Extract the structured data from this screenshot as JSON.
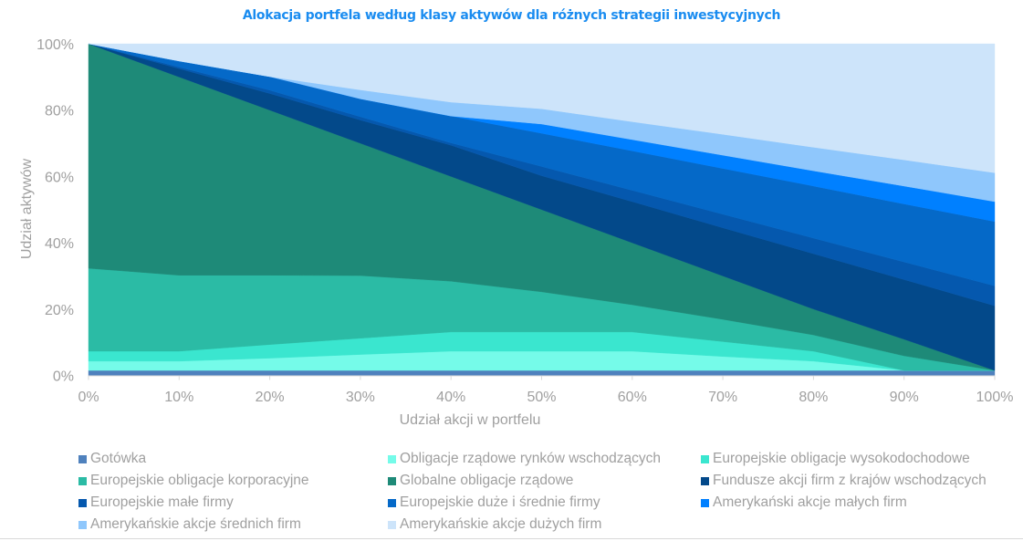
{
  "chart_data": {
    "type": "area",
    "stacked": true,
    "title": "Alokacja portfela według klasy aktywów dla różnych strategii inwestycyjnych",
    "xlabel": "Udział akcji w portfelu",
    "ylabel": "Udział aktywów",
    "x": [
      0,
      10,
      20,
      30,
      40,
      50,
      60,
      70,
      80,
      90,
      100
    ],
    "x_tick_labels": [
      "0%",
      "10%",
      "20%",
      "30%",
      "40%",
      "50%",
      "60%",
      "70%",
      "80%",
      "90%",
      "100%"
    ],
    "y_tick_values": [
      0,
      20,
      40,
      60,
      80,
      100
    ],
    "y_tick_labels": [
      "0%",
      "20%",
      "40%",
      "60%",
      "80%",
      "100%"
    ],
    "ylim": [
      0,
      100
    ],
    "legend_position": "bottom",
    "series": [
      {
        "name": "Gotówka",
        "color": "#4f81bd",
        "values": [
          1.5,
          1.5,
          1.5,
          1.5,
          1.5,
          1.5,
          1.5,
          1.5,
          1.5,
          1.5,
          1.5
        ]
      },
      {
        "name": "Obligacje rządowe rynków wschodzących",
        "color": "#75fbe9",
        "values": [
          2.8,
          2.8,
          3.7,
          4.8,
          5.8,
          5.8,
          5.8,
          4.2,
          2.8,
          0,
          0
        ]
      },
      {
        "name": "Europejskie obligacje wysokodochodowe",
        "color": "#3ae6cf",
        "values": [
          3,
          3,
          4.1,
          4.9,
          5.8,
          5.8,
          5.8,
          4.5,
          3,
          0,
          0
        ]
      },
      {
        "name": "Europejskie obligacje korporacyjne",
        "color": "#2bbba5",
        "values": [
          25,
          22.9,
          20.9,
          18.9,
          15.3,
          12.1,
          8.2,
          6.7,
          4.9,
          4.4,
          0
        ]
      },
      {
        "name": "Globalne obligacje rządowe",
        "color": "#1e8a78",
        "values": [
          67.7,
          59.8,
          49.8,
          39.9,
          31.6,
          24.8,
          18.7,
          13.1,
          7.8,
          5,
          0
        ]
      },
      {
        "name": "Fundusze akcji firm z krajów wschodzących",
        "color": "#03498a",
        "values": [
          0,
          2.5,
          5,
          7,
          9.4,
          10.2,
          12.4,
          14.5,
          16.7,
          18,
          19.5
        ]
      },
      {
        "name": "Europejskie małe firmy",
        "color": "#0558ae",
        "values": [
          0,
          0.5,
          1,
          1,
          0.7,
          2.8,
          3.4,
          4.1,
          4.7,
          5.3,
          6
        ]
      },
      {
        "name": "Europejskie duże i średnie firmy",
        "color": "#0569c8",
        "values": [
          0,
          1.8,
          4.1,
          5.4,
          8.1,
          10,
          11.9,
          13.8,
          15.7,
          17.5,
          19.4
        ]
      },
      {
        "name": "Amerykański akcje małych firm",
        "color": "#0080ff",
        "values": [
          0,
          0,
          0,
          0,
          0,
          2.8,
          3.4,
          4,
          4.6,
          5.4,
          6
        ]
      },
      {
        "name": "Amerykańskie akcje średnich firm",
        "color": "#8fc7fc",
        "values": [
          0,
          0,
          0,
          2.7,
          4.2,
          4.6,
          5.4,
          6.3,
          7.1,
          7.9,
          8.7
        ]
      },
      {
        "name": "Amerykańskie akcje dużych firm",
        "color": "#cde4fa",
        "values": [
          0,
          5.2,
          9.9,
          13.9,
          17.6,
          19.6,
          23.5,
          27.3,
          31.2,
          35,
          38.9
        ]
      }
    ]
  }
}
